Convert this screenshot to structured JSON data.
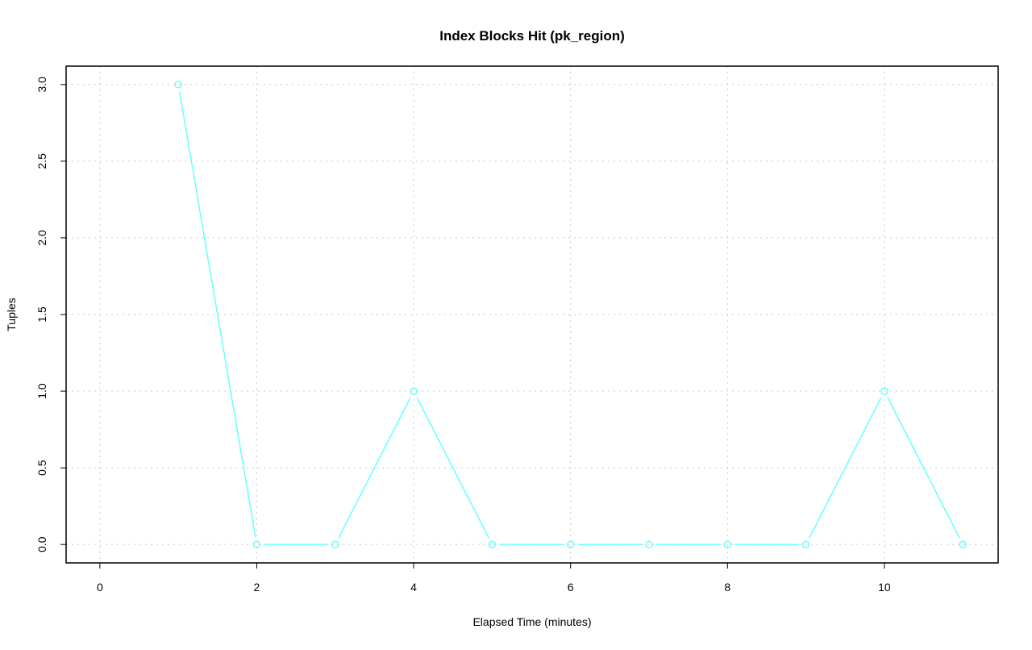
{
  "chart_data": {
    "type": "line",
    "title": "Index Blocks Hit (pk_region)",
    "xlabel": "Elapsed Time (minutes)",
    "ylabel": "Tuples",
    "xlim": [
      -0.43,
      11.45
    ],
    "ylim": [
      -0.12,
      3.12
    ],
    "x_ticks": [
      0,
      2,
      4,
      6,
      8,
      10
    ],
    "x_tick_labels": [
      "0",
      "2",
      "4",
      "6",
      "8",
      "10"
    ],
    "y_ticks": [
      0,
      0.5,
      1,
      1.5,
      2,
      2.5,
      3
    ],
    "y_tick_labels": [
      "0.0",
      "0.5",
      "1.0",
      "1.5",
      "2.0",
      "2.5",
      "3.0"
    ],
    "grid": true,
    "series": [
      {
        "color": "#66ffff",
        "marker": "open-circle",
        "x": [
          1,
          2,
          3,
          4,
          5,
          6,
          7,
          8,
          9,
          10,
          11
        ],
        "y": [
          3,
          0,
          0,
          1,
          0,
          0,
          0,
          0,
          0,
          1,
          0
        ]
      }
    ]
  }
}
